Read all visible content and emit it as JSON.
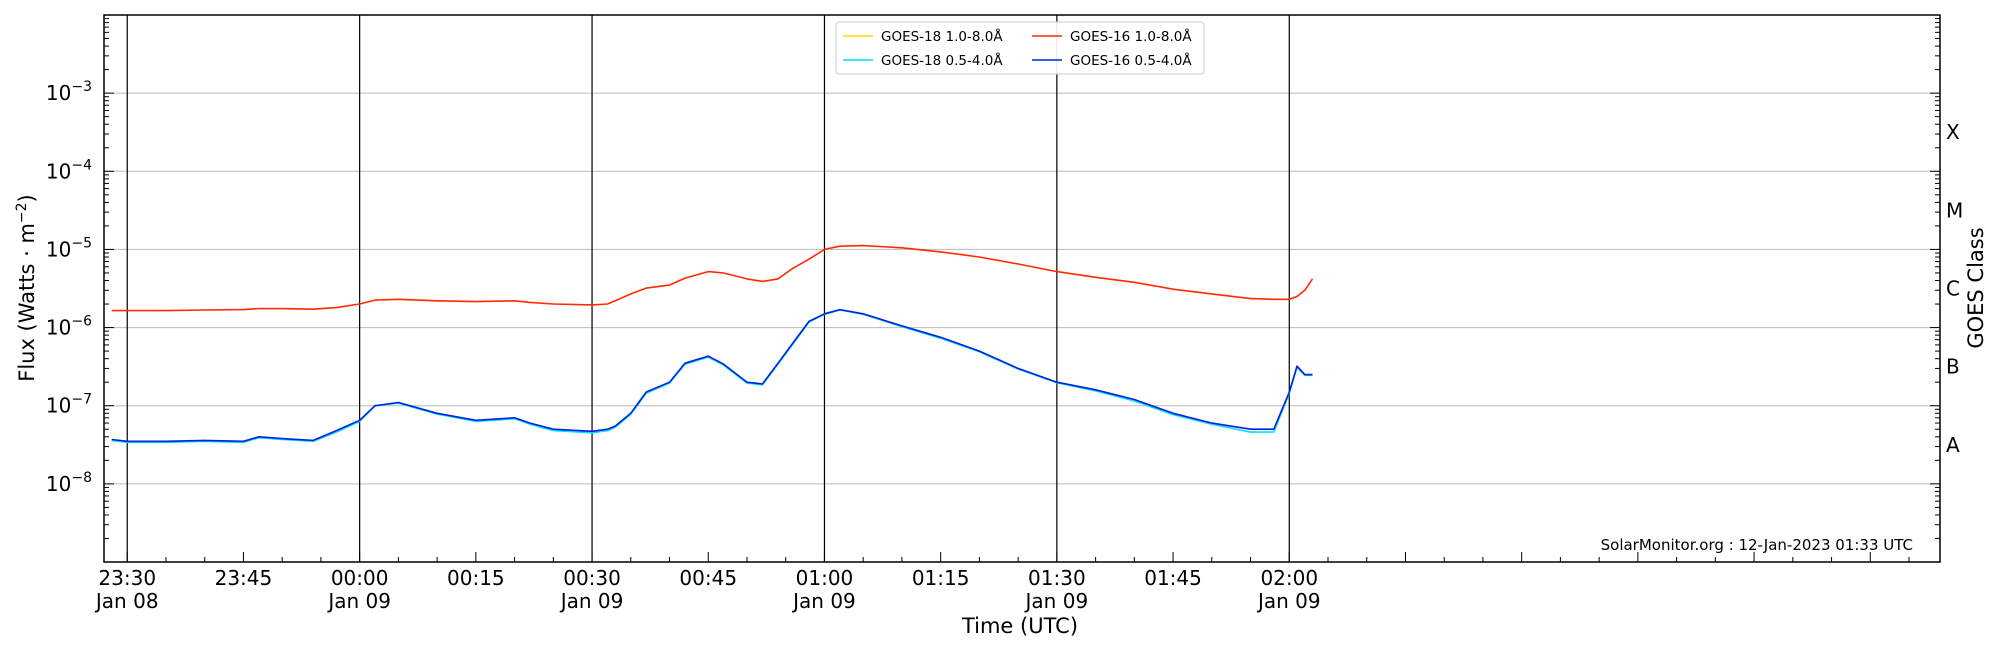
{
  "chart_data": {
    "type": "line",
    "xlabel": "Time (UTC)",
    "ylabel_main": "Flux (Watts · m",
    "ylabel_sup": "−2",
    "ylabel_close": ")",
    "right_label": "GOES Class",
    "y_scale": "log",
    "ylim": [
      1e-09,
      0.01
    ],
    "xlim_minutes_from_2330": [
      -3,
      234
    ],
    "y_ticks": [
      {
        "exp": -8,
        "base": "10",
        "sup": "−8"
      },
      {
        "exp": -7,
        "base": "10",
        "sup": "−7"
      },
      {
        "exp": -6,
        "base": "10",
        "sup": "−6"
      },
      {
        "exp": -5,
        "base": "10",
        "sup": "−5"
      },
      {
        "exp": -4,
        "base": "10",
        "sup": "−4"
      },
      {
        "exp": -3,
        "base": "10",
        "sup": "−3"
      }
    ],
    "goes_classes": [
      {
        "label": "A",
        "exp": -7.5
      },
      {
        "label": "B",
        "exp": -6.5
      },
      {
        "label": "C",
        "exp": -5.5
      },
      {
        "label": "M",
        "exp": -4.5
      },
      {
        "label": "X",
        "exp": -3.5
      }
    ],
    "x_ticks": [
      {
        "t": 0,
        "time": "23:30",
        "date": "Jan 08",
        "major": true
      },
      {
        "t": 15,
        "time": "23:45",
        "date": "",
        "major": false
      },
      {
        "t": 30,
        "time": "00:00",
        "date": "Jan 09",
        "major": true
      },
      {
        "t": 45,
        "time": "00:15",
        "date": "",
        "major": false
      },
      {
        "t": 60,
        "time": "00:30",
        "date": "Jan 09",
        "major": true
      },
      {
        "t": 75,
        "time": "00:45",
        "date": "",
        "major": false
      },
      {
        "t": 90,
        "time": "01:00",
        "date": "Jan 09",
        "major": true
      },
      {
        "t": 105,
        "time": "01:15",
        "date": "",
        "major": false
      },
      {
        "t": 120,
        "time": "01:30",
        "date": "Jan 09",
        "major": true
      },
      {
        "t": 135,
        "time": "01:45",
        "date": "",
        "major": false
      },
      {
        "t": 150,
        "time": "02:00",
        "date": "Jan 09",
        "major": true
      }
    ],
    "grid": "horizontal at decades; vertical lines every 30 min",
    "legend": {
      "placement": "top-center",
      "entries": [
        {
          "name": "GOES-18 1.0-8.0Å",
          "color": "#ffd700"
        },
        {
          "name": "GOES-18 0.5-4.0Å",
          "color": "#00e0ff"
        },
        {
          "name": "GOES-16 1.0-8.0Å",
          "color": "#ff2a00"
        },
        {
          "name": "GOES-16 0.5-4.0Å",
          "color": "#0022dd"
        }
      ]
    },
    "annotation": "SolarMonitor.org : 12-Jan-2023 01:33 UTC",
    "series": [
      {
        "name": "GOES-16 1.0-8.0Å",
        "color": "#ff2a00",
        "x_minutes_from_2330": [
          -2,
          0,
          5,
          10,
          15,
          17,
          20,
          24,
          27,
          30,
          32,
          35,
          40,
          45,
          50,
          52,
          55,
          60,
          62,
          63,
          65,
          67,
          70,
          72,
          75,
          77,
          80,
          82,
          84,
          86,
          88,
          90,
          92,
          95,
          100,
          105,
          110,
          115,
          120,
          125,
          130,
          135,
          140,
          145,
          148,
          150,
          151,
          152,
          153
        ],
        "y": [
          1.65e-06,
          1.65e-06,
          1.65e-06,
          1.68e-06,
          1.7e-06,
          1.75e-06,
          1.75e-06,
          1.72e-06,
          1.8e-06,
          2e-06,
          2.25e-06,
          2.3e-06,
          2.2e-06,
          2.15e-06,
          2.2e-06,
          2.1e-06,
          2e-06,
          1.95e-06,
          2e-06,
          2.2e-06,
          2.7e-06,
          3.2e-06,
          3.5e-06,
          4.3e-06,
          5.2e-06,
          5e-06,
          4.2e-06,
          3.9e-06,
          4.2e-06,
          5.8e-06,
          7.5e-06,
          1e-05,
          1.1e-05,
          1.12e-05,
          1.05e-05,
          9.3e-06,
          8e-06,
          6.5e-06,
          5.2e-06,
          4.4e-06,
          3.8e-06,
          3.1e-06,
          2.7e-06,
          2.35e-06,
          2.3e-06,
          2.3e-06,
          2.5e-06,
          3e-06,
          4.2e-06
        ]
      },
      {
        "name": "GOES-16 0.5-4.0Å",
        "color": "#0022dd",
        "x_minutes_from_2330": [
          -2,
          0,
          5,
          10,
          15,
          17,
          20,
          24,
          27,
          30,
          32,
          35,
          40,
          45,
          50,
          52,
          55,
          60,
          62,
          63,
          65,
          67,
          70,
          72,
          75,
          77,
          80,
          82,
          84,
          86,
          88,
          90,
          92,
          95,
          100,
          105,
          110,
          115,
          120,
          125,
          130,
          135,
          140,
          145,
          148,
          150,
          151,
          152,
          153
        ],
        "y": [
          3.7e-08,
          3.5e-08,
          3.5e-08,
          3.6e-08,
          3.5e-08,
          4e-08,
          3.8e-08,
          3.6e-08,
          4.8e-08,
          6.5e-08,
          1e-07,
          1.1e-07,
          8e-08,
          6.5e-08,
          7e-08,
          6e-08,
          5e-08,
          4.7e-08,
          5e-08,
          5.5e-08,
          8e-08,
          1.5e-07,
          2e-07,
          3.5e-07,
          4.3e-07,
          3.4e-07,
          2e-07,
          1.9e-07,
          3.5e-07,
          6.5e-07,
          1.2e-06,
          1.5e-06,
          1.7e-06,
          1.5e-06,
          1.05e-06,
          7.5e-07,
          5e-07,
          3e-07,
          2e-07,
          1.6e-07,
          1.2e-07,
          8e-08,
          6e-08,
          5e-08,
          5e-08,
          1.5e-07,
          3.2e-07,
          2.5e-07,
          2.5e-07
        ]
      },
      {
        "name": "GOES-18 0.5-4.0Å",
        "color": "#00e0ff",
        "x_minutes_from_2330": [
          -2,
          0,
          5,
          10,
          15,
          17,
          20,
          24,
          27,
          30,
          32,
          35,
          40,
          45,
          50,
          52,
          55,
          60,
          62,
          63,
          65,
          67,
          70,
          72,
          75,
          77,
          80,
          82,
          84,
          86,
          88,
          90,
          92,
          95,
          100,
          105,
          110,
          115,
          120,
          125,
          130,
          135,
          140,
          145,
          148,
          150,
          151,
          152,
          153
        ],
        "y": [
          3.6e-08,
          3.4e-08,
          3.4e-08,
          3.5e-08,
          3.4e-08,
          3.9e-08,
          3.7e-08,
          3.5e-08,
          4.6e-08,
          6.3e-08,
          1e-07,
          1.08e-07,
          7.8e-08,
          6.3e-08,
          6.8e-08,
          5.8e-08,
          4.8e-08,
          4.5e-08,
          4.8e-08,
          5.3e-08,
          7.8e-08,
          1.45e-07,
          1.95e-07,
          3.4e-07,
          4.2e-07,
          3.3e-07,
          1.95e-07,
          1.85e-07,
          3.4e-07,
          6.3e-07,
          1.18e-06,
          1.48e-06,
          1.68e-06,
          1.48e-06,
          1.03e-06,
          7.3e-07,
          4.9e-07,
          2.95e-07,
          1.97e-07,
          1.55e-07,
          1.15e-07,
          7.7e-08,
          5.8e-08,
          4.6e-08,
          4.6e-08,
          1.45e-07,
          3.1e-07,
          2.45e-07,
          2.45e-07
        ]
      }
    ]
  }
}
